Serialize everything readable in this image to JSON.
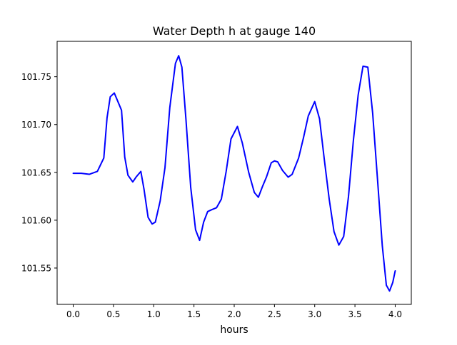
{
  "chart_data": {
    "type": "line",
    "title": "Water Depth h at gauge 140",
    "xlabel": "hours",
    "ylabel": "",
    "xlim": [
      -0.2,
      4.2
    ],
    "ylim": [
      101.512,
      101.787
    ],
    "xticks": [
      0.0,
      0.5,
      1.0,
      1.5,
      2.0,
      2.5,
      3.0,
      3.5,
      4.0
    ],
    "xtick_labels": [
      "0.0",
      "0.5",
      "1.0",
      "1.5",
      "2.0",
      "2.5",
      "3.0",
      "3.5",
      "4.0"
    ],
    "yticks": [
      101.55,
      101.6,
      101.65,
      101.7,
      101.75
    ],
    "ytick_labels": [
      "101.55",
      "101.60",
      "101.65",
      "101.70",
      "101.75"
    ],
    "grid": false,
    "legend": null,
    "series": [
      {
        "color": "#0000ff",
        "x": [
          0.0,
          0.1,
          0.2,
          0.3,
          0.38,
          0.42,
          0.46,
          0.51,
          0.55,
          0.6,
          0.64,
          0.68,
          0.74,
          0.78,
          0.84,
          0.88,
          0.93,
          0.98,
          1.02,
          1.08,
          1.14,
          1.2,
          1.27,
          1.31,
          1.35,
          1.4,
          1.46,
          1.52,
          1.57,
          1.62,
          1.67,
          1.72,
          1.78,
          1.84,
          1.9,
          1.96,
          2.04,
          2.1,
          2.18,
          2.25,
          2.3,
          2.35,
          2.4,
          2.46,
          2.5,
          2.54,
          2.6,
          2.67,
          2.72,
          2.8,
          2.86,
          2.92,
          3.0,
          3.06,
          3.12,
          3.18,
          3.24,
          3.3,
          3.36,
          3.42,
          3.48,
          3.54,
          3.6,
          3.66,
          3.72,
          3.78,
          3.84,
          3.89,
          3.93,
          3.97,
          4.0
        ],
        "y": [
          101.649,
          101.649,
          101.648,
          101.651,
          101.665,
          101.707,
          101.729,
          101.733,
          101.725,
          101.715,
          101.666,
          101.647,
          101.64,
          101.645,
          101.651,
          101.632,
          101.603,
          101.596,
          101.598,
          101.62,
          101.655,
          101.718,
          101.764,
          101.772,
          101.76,
          101.706,
          101.634,
          101.59,
          101.579,
          101.598,
          101.609,
          101.611,
          101.613,
          101.622,
          101.651,
          101.685,
          101.698,
          101.681,
          101.65,
          101.629,
          101.624,
          101.635,
          101.645,
          101.66,
          101.662,
          101.661,
          101.652,
          101.645,
          101.648,
          101.665,
          101.686,
          101.709,
          101.724,
          101.706,
          101.663,
          101.622,
          101.588,
          101.574,
          101.583,
          101.625,
          101.683,
          101.731,
          101.761,
          101.76,
          101.712,
          101.643,
          101.573,
          101.532,
          101.526,
          101.535,
          101.547
        ]
      }
    ]
  }
}
